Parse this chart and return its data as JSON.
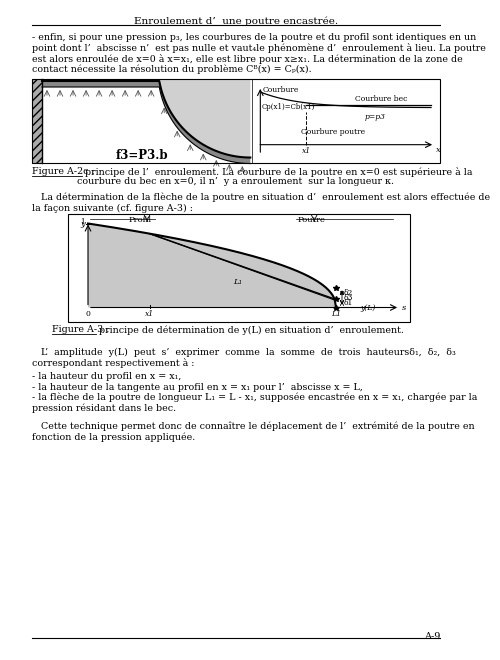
{
  "title": "Enroulement d’  une poutre encastrée.",
  "page_number": "A-9",
  "bg_color": "#ffffff",
  "lines_p1": [
    "- enfin, si pour une pression p₃, les courbures de la poutre et du profil sont identiques en un",
    "point dont l’  abscisse n’  est pas nulle et vaut₄le phénomène d’  enroulement à lieu. La poutre",
    "est alors enroulée de x=0 à x=x₁, elle est libre pour x≥x₁. La détermination de la zone de",
    "contact nécessite la résolution du problème Cᴮ(x) = Cₚ(x)."
  ],
  "fig2c_label": "Figure A-2c :",
  "fig2c_cap1": " principe de l’  enroulement. La courbure de la poutre en x=0 est supérieure à la",
  "fig2c_cap2": "courbure du bec en x=0, il n’  y a enroulement  sur la longueur κ.",
  "fig3_label": "Figure A-3 :",
  "fig3_cap": " principe de détermination de y(L) en situation d’  enroulement.",
  "p2_line1": "   La détermination de la flèche de la poutre en situation d’  enroulement est alors effectuée de",
  "p2_line2": "la façon suivante (cf. figure A-3) :",
  "p3_line1": "   L’  amplitude  y(L)  peut  s’  exprimer  comme  la  somme  de  trois  hauteursδ₁,  δ₂,  δ₃",
  "p3_line2": "correspondant respectivement à :",
  "bullet1": "- la hauteur du profil en x = x₁,",
  "bullet2": "- la hauteur de la tangente au profil en x = x₁ pour l’  abscisse x = L,",
  "bullet3a": "- la flèche de la poutre de longueur L₁ = L - x₁, supposée encastrée en x = x₁, chargée par la",
  "bullet3b": "pression résidant dans le bec.",
  "p4_line1": "   Cette technique permet donc de connaître le déplacement de l’  extrémité de la poutre en",
  "p4_line2": "fonction de la pression appliquée."
}
